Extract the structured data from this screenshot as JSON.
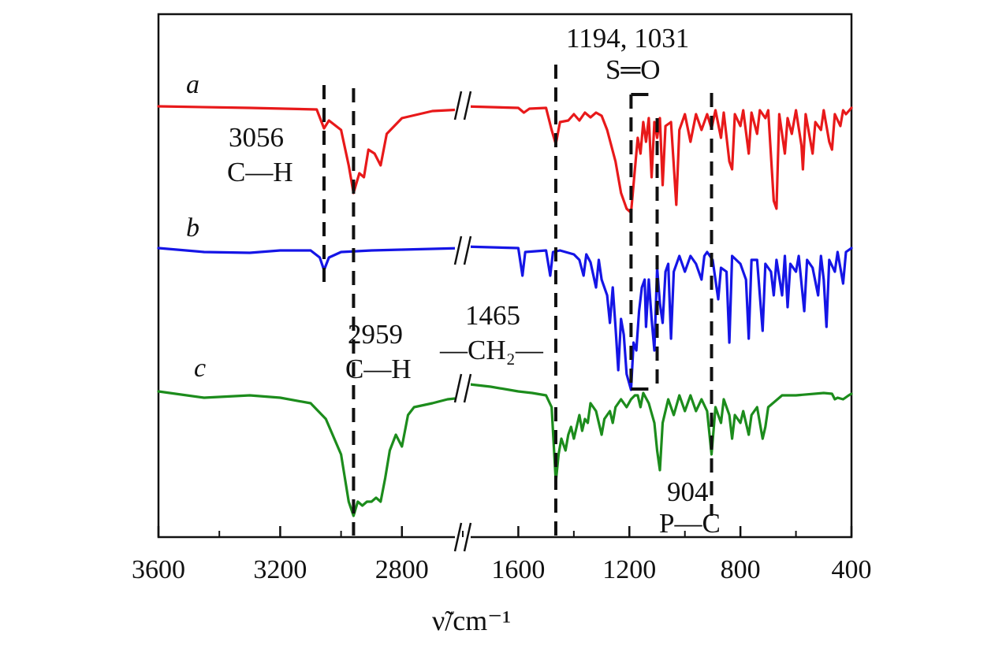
{
  "chart_data": {
    "type": "line",
    "title": "",
    "xlabel": "ν̃/cm⁻¹",
    "ylabel": "",
    "x_axis": {
      "reversed": true,
      "broken": true,
      "segments": [
        [
          3600,
          2600
        ],
        [
          1800,
          400
        ]
      ],
      "ticks": [
        3600,
        3200,
        2800,
        1600,
        1200,
        800,
        400
      ],
      "tick_labels": [
        "3600",
        "3200",
        "2800",
        "1600",
        "1200",
        "800",
        "400"
      ]
    },
    "y_axis": {
      "shown": false,
      "relative_units": "transmittance (offset)"
    },
    "grid": false,
    "legend": "none",
    "series": [
      {
        "name": "a",
        "color": "#e8191a",
        "offset": 0,
        "points": [
          [
            3600,
            0
          ],
          [
            3300,
            -2
          ],
          [
            3080,
            -4
          ],
          [
            3056,
            -28
          ],
          [
            3040,
            -18
          ],
          [
            3000,
            -30
          ],
          [
            2975,
            -75
          ],
          [
            2959,
            -110
          ],
          [
            2940,
            -85
          ],
          [
            2925,
            -90
          ],
          [
            2910,
            -55
          ],
          [
            2890,
            -60
          ],
          [
            2870,
            -75
          ],
          [
            2850,
            -35
          ],
          [
            2800,
            -15
          ],
          [
            2700,
            -6
          ],
          [
            2600,
            -4
          ],
          [
            1800,
            0
          ],
          [
            1600,
            -2
          ],
          [
            1580,
            -8
          ],
          [
            1560,
            -3
          ],
          [
            1500,
            -2
          ],
          [
            1480,
            -30
          ],
          [
            1465,
            -48
          ],
          [
            1450,
            -20
          ],
          [
            1420,
            -18
          ],
          [
            1400,
            -10
          ],
          [
            1380,
            -18
          ],
          [
            1360,
            -8
          ],
          [
            1340,
            -14
          ],
          [
            1320,
            -8
          ],
          [
            1300,
            -12
          ],
          [
            1280,
            -30
          ],
          [
            1250,
            -70
          ],
          [
            1230,
            -110
          ],
          [
            1210,
            -130
          ],
          [
            1194,
            -135
          ],
          [
            1180,
            -80
          ],
          [
            1170,
            -40
          ],
          [
            1160,
            -60
          ],
          [
            1150,
            -20
          ],
          [
            1140,
            -45
          ],
          [
            1130,
            -15
          ],
          [
            1120,
            -90
          ],
          [
            1110,
            -20
          ],
          [
            1100,
            -40
          ],
          [
            1090,
            -15
          ],
          [
            1080,
            -100
          ],
          [
            1070,
            -25
          ],
          [
            1050,
            -20
          ],
          [
            1031,
            -125
          ],
          [
            1020,
            -30
          ],
          [
            1000,
            -10
          ],
          [
            980,
            -45
          ],
          [
            960,
            -10
          ],
          [
            940,
            -30
          ],
          [
            920,
            -10
          ],
          [
            904,
            -28
          ],
          [
            890,
            -5
          ],
          [
            870,
            -40
          ],
          [
            860,
            -8
          ],
          [
            840,
            -70
          ],
          [
            830,
            -80
          ],
          [
            820,
            -10
          ],
          [
            800,
            -25
          ],
          [
            790,
            -5
          ],
          [
            770,
            -60
          ],
          [
            760,
            -8
          ],
          [
            740,
            -35
          ],
          [
            730,
            -5
          ],
          [
            710,
            -15
          ],
          [
            700,
            -5
          ],
          [
            680,
            -120
          ],
          [
            670,
            -130
          ],
          [
            660,
            -10
          ],
          [
            640,
            -60
          ],
          [
            630,
            -15
          ],
          [
            615,
            -35
          ],
          [
            600,
            -5
          ],
          [
            580,
            -50
          ],
          [
            575,
            -80
          ],
          [
            565,
            -10
          ],
          [
            540,
            -60
          ],
          [
            530,
            -20
          ],
          [
            510,
            -30
          ],
          [
            500,
            -5
          ],
          [
            480,
            -45
          ],
          [
            470,
            -55
          ],
          [
            460,
            -10
          ],
          [
            440,
            -25
          ],
          [
            430,
            -5
          ],
          [
            420,
            -10
          ],
          [
            400,
            -2
          ]
        ]
      },
      {
        "name": "b",
        "color": "#1515e6",
        "offset": 0,
        "points": [
          [
            3600,
            0
          ],
          [
            3450,
            -5
          ],
          [
            3300,
            -6
          ],
          [
            3200,
            -3
          ],
          [
            3100,
            -3
          ],
          [
            3070,
            -12
          ],
          [
            3056,
            -28
          ],
          [
            3040,
            -12
          ],
          [
            3000,
            -5
          ],
          [
            2900,
            -3
          ],
          [
            2800,
            -2
          ],
          [
            2700,
            -1
          ],
          [
            2600,
            0
          ],
          [
            1800,
            2
          ],
          [
            1600,
            0
          ],
          [
            1585,
            -35
          ],
          [
            1575,
            -5
          ],
          [
            1500,
            -3
          ],
          [
            1485,
            -35
          ],
          [
            1475,
            -5
          ],
          [
            1450,
            -3
          ],
          [
            1430,
            -5
          ],
          [
            1400,
            -8
          ],
          [
            1380,
            -15
          ],
          [
            1365,
            -35
          ],
          [
            1355,
            -8
          ],
          [
            1340,
            -18
          ],
          [
            1320,
            -50
          ],
          [
            1310,
            -15
          ],
          [
            1300,
            -40
          ],
          [
            1280,
            -60
          ],
          [
            1270,
            -95
          ],
          [
            1260,
            -50
          ],
          [
            1250,
            -100
          ],
          [
            1240,
            -155
          ],
          [
            1230,
            -90
          ],
          [
            1220,
            -110
          ],
          [
            1210,
            -160
          ],
          [
            1194,
            -180
          ],
          [
            1185,
            -120
          ],
          [
            1175,
            -130
          ],
          [
            1165,
            -80
          ],
          [
            1155,
            -50
          ],
          [
            1145,
            -40
          ],
          [
            1140,
            -100
          ],
          [
            1130,
            -40
          ],
          [
            1120,
            -90
          ],
          [
            1110,
            -130
          ],
          [
            1100,
            -25
          ],
          [
            1090,
            -70
          ],
          [
            1080,
            -95
          ],
          [
            1070,
            -30
          ],
          [
            1060,
            -20
          ],
          [
            1050,
            -115
          ],
          [
            1040,
            -30
          ],
          [
            1020,
            -10
          ],
          [
            1000,
            -30
          ],
          [
            980,
            -10
          ],
          [
            960,
            -20
          ],
          [
            940,
            -40
          ],
          [
            930,
            -10
          ],
          [
            920,
            -5
          ],
          [
            900,
            -15
          ],
          [
            880,
            -65
          ],
          [
            870,
            -25
          ],
          [
            850,
            -30
          ],
          [
            840,
            -120
          ],
          [
            830,
            -10
          ],
          [
            800,
            -20
          ],
          [
            780,
            -40
          ],
          [
            770,
            -115
          ],
          [
            760,
            -15
          ],
          [
            740,
            -15
          ],
          [
            720,
            -105
          ],
          [
            710,
            -20
          ],
          [
            690,
            -30
          ],
          [
            680,
            -60
          ],
          [
            670,
            -15
          ],
          [
            650,
            -60
          ],
          [
            640,
            -10
          ],
          [
            630,
            -75
          ],
          [
            620,
            -20
          ],
          [
            600,
            -30
          ],
          [
            590,
            -10
          ],
          [
            570,
            -80
          ],
          [
            560,
            -15
          ],
          [
            540,
            -25
          ],
          [
            520,
            -60
          ],
          [
            510,
            -10
          ],
          [
            500,
            -40
          ],
          [
            490,
            -100
          ],
          [
            480,
            -15
          ],
          [
            460,
            -30
          ],
          [
            450,
            -5
          ],
          [
            430,
            -45
          ],
          [
            420,
            -5
          ],
          [
            400,
            0
          ]
        ]
      },
      {
        "name": "c",
        "color": "#1c8c1c",
        "offset": 0,
        "points": [
          [
            3600,
            0
          ],
          [
            3450,
            -8
          ],
          [
            3300,
            -5
          ],
          [
            3200,
            -8
          ],
          [
            3100,
            -15
          ],
          [
            3050,
            -35
          ],
          [
            3000,
            -80
          ],
          [
            2975,
            -140
          ],
          [
            2959,
            -158
          ],
          [
            2945,
            -140
          ],
          [
            2930,
            -145
          ],
          [
            2915,
            -140
          ],
          [
            2900,
            -140
          ],
          [
            2885,
            -135
          ],
          [
            2870,
            -140
          ],
          [
            2855,
            -110
          ],
          [
            2840,
            -75
          ],
          [
            2820,
            -55
          ],
          [
            2800,
            -70
          ],
          [
            2780,
            -30
          ],
          [
            2760,
            -20
          ],
          [
            2700,
            -15
          ],
          [
            2650,
            -10
          ],
          [
            2600,
            -8
          ],
          [
            1800,
            10
          ],
          [
            1700,
            6
          ],
          [
            1600,
            0
          ],
          [
            1550,
            -2
          ],
          [
            1500,
            -5
          ],
          [
            1480,
            -20
          ],
          [
            1465,
            -115
          ],
          [
            1455,
            -80
          ],
          [
            1445,
            -60
          ],
          [
            1430,
            -75
          ],
          [
            1420,
            -55
          ],
          [
            1410,
            -45
          ],
          [
            1400,
            -60
          ],
          [
            1380,
            -30
          ],
          [
            1370,
            -50
          ],
          [
            1360,
            -35
          ],
          [
            1350,
            -40
          ],
          [
            1340,
            -15
          ],
          [
            1320,
            -25
          ],
          [
            1300,
            -55
          ],
          [
            1290,
            -35
          ],
          [
            1280,
            -30
          ],
          [
            1270,
            -25
          ],
          [
            1260,
            -40
          ],
          [
            1250,
            -20
          ],
          [
            1230,
            -10
          ],
          [
            1210,
            -20
          ],
          [
            1194,
            -10
          ],
          [
            1180,
            -5
          ],
          [
            1170,
            -5
          ],
          [
            1160,
            -20
          ],
          [
            1150,
            -2
          ],
          [
            1130,
            -15
          ],
          [
            1110,
            -40
          ],
          [
            1100,
            -75
          ],
          [
            1090,
            -100
          ],
          [
            1080,
            -40
          ],
          [
            1060,
            -10
          ],
          [
            1040,
            -30
          ],
          [
            1020,
            -5
          ],
          [
            1000,
            -25
          ],
          [
            980,
            -5
          ],
          [
            960,
            -25
          ],
          [
            940,
            -10
          ],
          [
            920,
            -25
          ],
          [
            904,
            -80
          ],
          [
            890,
            -20
          ],
          [
            870,
            -40
          ],
          [
            860,
            -10
          ],
          [
            840,
            -30
          ],
          [
            830,
            -60
          ],
          [
            820,
            -30
          ],
          [
            800,
            -40
          ],
          [
            790,
            -25
          ],
          [
            770,
            -55
          ],
          [
            760,
            -30
          ],
          [
            740,
            -20
          ],
          [
            720,
            -60
          ],
          [
            710,
            -45
          ],
          [
            700,
            -20
          ],
          [
            650,
            -5
          ],
          [
            600,
            -5
          ],
          [
            500,
            -2
          ],
          [
            470,
            -3
          ],
          [
            460,
            -10
          ],
          [
            450,
            -8
          ],
          [
            430,
            -10
          ],
          [
            410,
            -5
          ],
          [
            400,
            -3
          ]
        ]
      }
    ],
    "series_labels": [
      "a",
      "b",
      "c"
    ],
    "marker_lines": [
      3056,
      2959,
      1465,
      904
    ],
    "bracket": {
      "from": 1194,
      "to": 1100
    },
    "annotations": [
      {
        "lines": [
          "3056",
          "C—H"
        ]
      },
      {
        "lines": [
          "2959",
          "C—H"
        ]
      },
      {
        "lines": [
          "1465",
          "—CH₂—"
        ]
      },
      {
        "lines": [
          "1194, 1031",
          "S═O"
        ]
      },
      {
        "lines": [
          "904",
          "P—C"
        ]
      }
    ],
    "axis_break_symbol": "//"
  }
}
